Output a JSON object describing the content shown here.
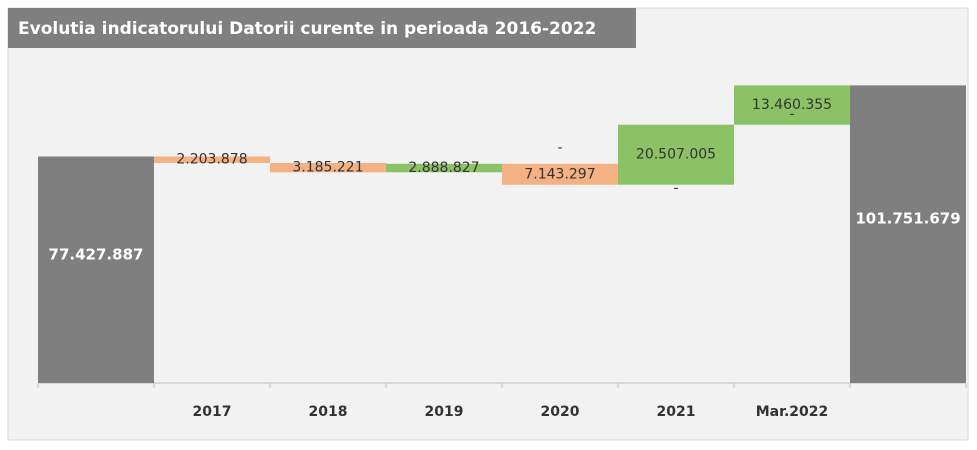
{
  "chart_data": {
    "type": "waterfall",
    "title": "Evolutia indicatorului Datorii curente in perioada 2016-2022",
    "categories": [
      null,
      "2017",
      "2018",
      "2019",
      "2020",
      "2021",
      "Mar.2022",
      null
    ],
    "values": [
      77427887,
      -2203878,
      -3185221,
      2888827,
      -7143297,
      20507005,
      13460355,
      101751679
    ],
    "value_labels": [
      "77.427.887",
      "2.203.878",
      "3.185.221",
      "2.888.827",
      "7.143.297",
      "20.507.005",
      "13.460.355",
      "101.751.679"
    ],
    "totals": [
      true,
      false,
      false,
      false,
      false,
      false,
      false,
      true
    ],
    "dash_labels": [
      {
        "category": "2020",
        "text": "-"
      },
      {
        "category": "2021",
        "text": "-"
      },
      {
        "category": "Mar.2022",
        "text": "-"
      }
    ],
    "colors": {
      "increase": "#8cc266",
      "decrease": "#f4b183",
      "total": "#7f7f7f"
    },
    "ylim": [
      0,
      107000000
    ]
  }
}
